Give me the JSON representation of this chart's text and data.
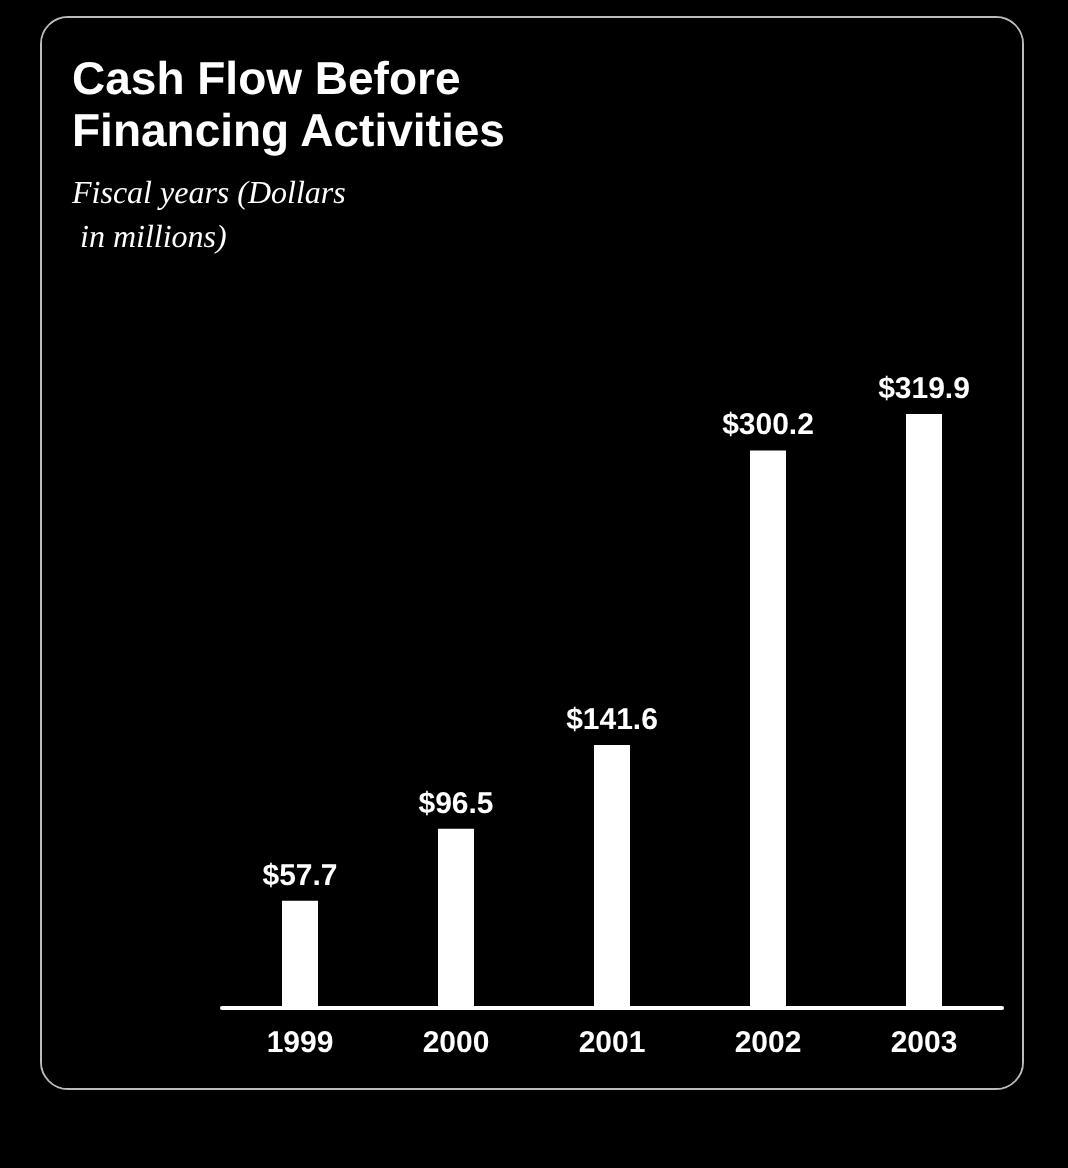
{
  "chart_data": {
    "type": "bar",
    "title": "Cash Flow Before Financing Activities",
    "subtitle": "Fiscal years (Dollars in millions)",
    "categories": [
      "1999",
      "2000",
      "2001",
      "2002",
      "2003"
    ],
    "values": [
      57.7,
      96.5,
      141.6,
      300.2,
      319.9
    ],
    "value_labels": [
      "$57.7",
      "$96.5",
      "$141.6",
      "$300.2",
      "$319.9"
    ],
    "color": "#ffffff"
  }
}
